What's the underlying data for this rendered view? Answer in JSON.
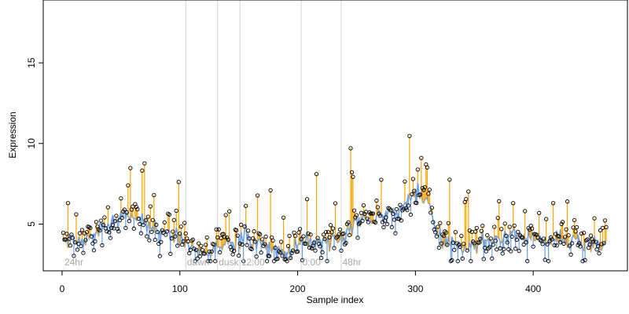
{
  "chart_data": {
    "type": "scatter",
    "title": "",
    "xlabel": "Sample index",
    "ylabel": "Expression",
    "xlim": [
      -16,
      480
    ],
    "ylim": [
      2.1,
      18.9
    ],
    "xticks": [
      0,
      100,
      200,
      300,
      400
    ],
    "yticks": [
      5,
      10,
      15
    ],
    "grid": false,
    "legend": "none",
    "colors": {
      "fitted_line": "#6f9fdf",
      "residual_above": "#ffa500",
      "residual_below": "#6f9fdf",
      "points": "#000000",
      "annotation_lines": "#d3d3d3",
      "annotation_text": "#a9a9a9"
    },
    "annotations": [
      {
        "label": "24hr",
        "x": 2
      },
      {
        "label": "dawn",
        "x": 106
      },
      {
        "label": "dusk",
        "x": 133
      },
      {
        "label": "12:00",
        "x": 152
      },
      {
        "label": "0:00",
        "x": 204
      },
      {
        "label": "48hr",
        "x": 238
      }
    ],
    "annotation_lines_x": [
      105,
      132,
      151,
      203,
      237
    ],
    "n_points": 462
  }
}
